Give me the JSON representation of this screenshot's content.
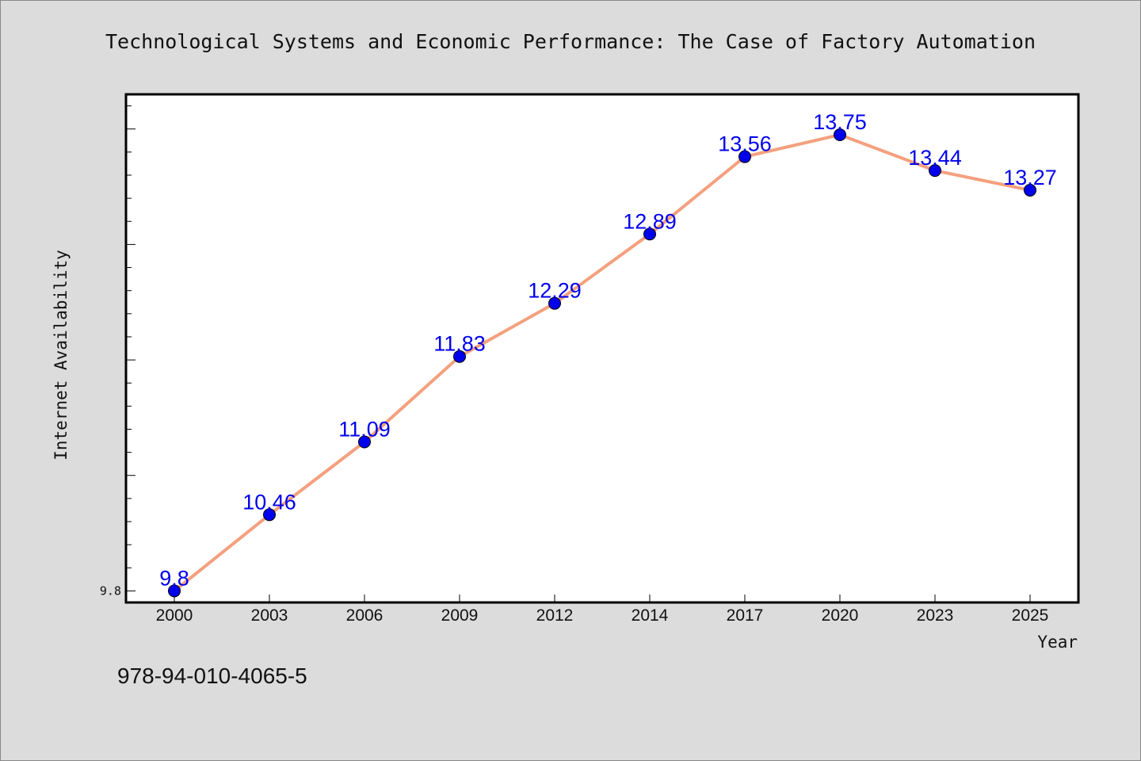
{
  "chart_data": {
    "type": "line",
    "title": "Technological Systems and Economic Performance: The Case of Factory Automation",
    "xlabel": "Year",
    "ylabel": "Internet Availability",
    "categories": [
      "2000",
      "2003",
      "2006",
      "2009",
      "2012",
      "2014",
      "2017",
      "2020",
      "2023",
      "2025"
    ],
    "series": [
      {
        "values": [
          9.8,
          10.46,
          11.09,
          11.83,
          12.29,
          12.89,
          13.56,
          13.75,
          13.44,
          13.27
        ],
        "labels": [
          "9.8",
          "10.46",
          "11.09",
          "11.83",
          "12.29",
          "12.89",
          "13.56",
          "13.75",
          "13.44",
          "13.27"
        ]
      }
    ],
    "y_tick_labels": [
      "9.8"
    ],
    "ylim": [
      9.7,
      14.1
    ],
    "grid": false,
    "legend": "none",
    "colors": {
      "line": "#f4a07e",
      "marker": "#0000ee",
      "data_label": "#0000ee",
      "plot_background": "#ffffff",
      "figure_background": "#dcdcdc"
    }
  },
  "footer": {
    "isbn": "978-94-010-4065-5"
  }
}
